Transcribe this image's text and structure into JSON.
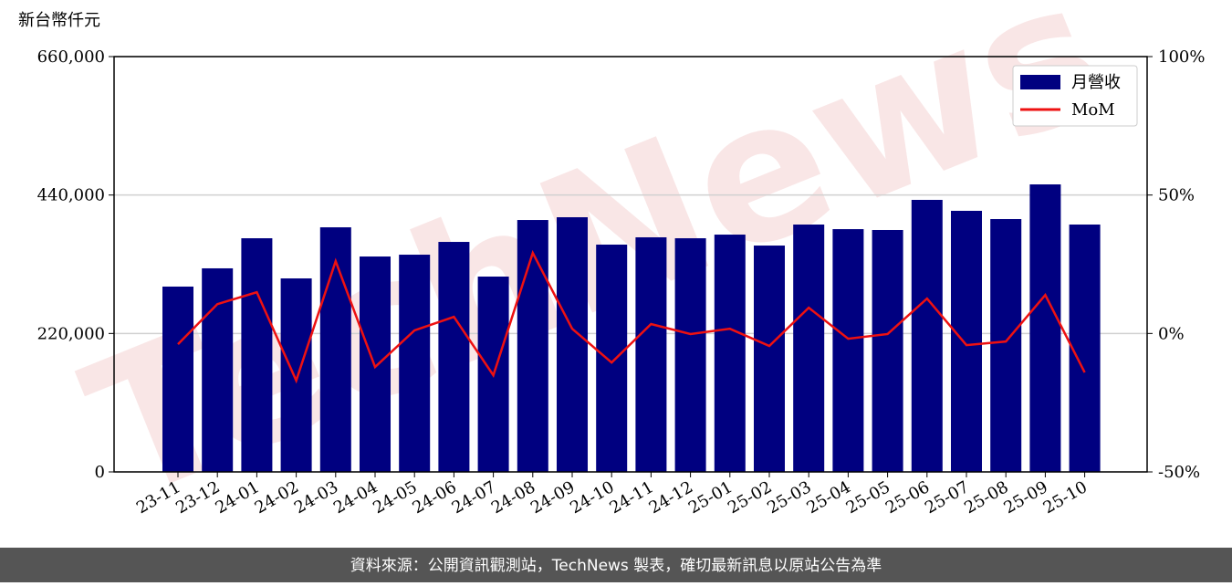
{
  "chart_data": {
    "type": "bar_line",
    "y_label": "新台幣仟元",
    "watermark": "TechNews",
    "footer": "資料來源：公開資訊觀測站，TechNews 製表，確切最新訊息以原站公告為準",
    "categories": [
      "23-11",
      "23-12",
      "24-01",
      "24-02",
      "24-03",
      "24-04",
      "24-05",
      "24-06",
      "24-07",
      "24-08",
      "24-09",
      "24-10",
      "24-11",
      "24-12",
      "25-01",
      "25-02",
      "25-03",
      "25-04",
      "25-05",
      "25-06",
      "25-07",
      "25-08",
      "25-09",
      "25-10"
    ],
    "series": [
      {
        "name": "月營收",
        "type": "bar",
        "color": "#000080",
        "values": [
          294500,
          323500,
          371300,
          307500,
          388700,
          342300,
          345200,
          365500,
          310400,
          400300,
          404700,
          361200,
          372800,
          371300,
          377100,
          359700,
          393100,
          385800,
          384400,
          432300,
          414900,
          401800,
          456900,
          393100
        ]
      },
      {
        "name": "MoM",
        "type": "line",
        "axis": "y2",
        "color": "#ee1111",
        "values": [
          -3.9,
          10.6,
          14.9,
          -17.0,
          26.1,
          -12.1,
          1.1,
          6.0,
          -15.1,
          29.1,
          1.7,
          -10.5,
          3.4,
          -0.2,
          1.7,
          -4.5,
          9.3,
          -1.9,
          -0.2,
          12.6,
          -4.2,
          -2.9,
          13.9,
          -14.1
        ]
      }
    ],
    "ylim": [
      0,
      660000
    ],
    "yticks": [
      {
        "value": 0,
        "label": "0"
      },
      {
        "value": 220000,
        "label": "220,000"
      },
      {
        "value": 440000,
        "label": "440,000"
      },
      {
        "value": 660000,
        "label": "660,000"
      }
    ],
    "y2lim": [
      -50,
      100
    ],
    "y2ticks": [
      {
        "value": -50,
        "label": "-50%"
      },
      {
        "value": 0,
        "label": "0%"
      },
      {
        "value": 50,
        "label": "50%"
      },
      {
        "value": 100,
        "label": "100%"
      }
    ],
    "grid": true,
    "legend": "upper right"
  }
}
